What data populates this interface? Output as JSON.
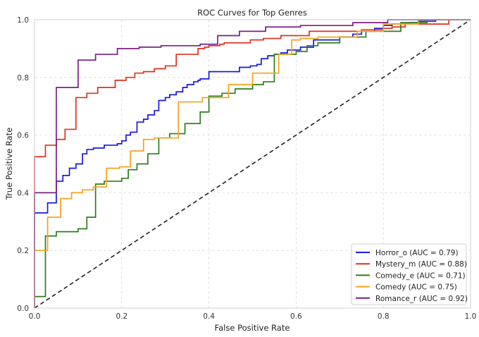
{
  "chart_data": {
    "type": "line",
    "title": "ROC Curves for Top Genres",
    "xlabel": "False Positive Rate",
    "ylabel": "True Positive Rate",
    "xlim": [
      0.0,
      1.0
    ],
    "ylim": [
      0.0,
      1.0
    ],
    "xticks": [
      "0.0",
      "0.2",
      "0.4",
      "0.6",
      "0.8",
      "1.0"
    ],
    "yticks": [
      "0.0",
      "0.2",
      "0.4",
      "0.6",
      "0.8",
      "1.0"
    ],
    "grid": true,
    "legend_position": "lower-right",
    "baseline": {
      "x": [
        0,
        1
      ],
      "y": [
        0,
        1
      ],
      "color": "#222222",
      "style": "dashed"
    },
    "series": [
      {
        "name": "Horror_o (AUC = 0.79)",
        "color": "#1818e0",
        "x": [
          0,
          0,
          0.03,
          0.03,
          0.05,
          0.05,
          0.065,
          0.065,
          0.08,
          0.08,
          0.095,
          0.095,
          0.11,
          0.11,
          0.12,
          0.12,
          0.135,
          0.135,
          0.16,
          0.16,
          0.19,
          0.19,
          0.2,
          0.2,
          0.21,
          0.21,
          0.22,
          0.22,
          0.235,
          0.235,
          0.25,
          0.25,
          0.26,
          0.26,
          0.275,
          0.275,
          0.285,
          0.285,
          0.3,
          0.3,
          0.31,
          0.31,
          0.325,
          0.325,
          0.34,
          0.34,
          0.35,
          0.35,
          0.365,
          0.365,
          0.375,
          0.375,
          0.38,
          0.38,
          0.4,
          0.4,
          0.47,
          0.47,
          0.495,
          0.495,
          0.51,
          0.51,
          0.52,
          0.52,
          0.535,
          0.535,
          0.55,
          0.55,
          0.565,
          0.565,
          0.58,
          0.58,
          0.61,
          0.61,
          0.64,
          0.64,
          0.7,
          0.7,
          0.73,
          0.73,
          0.75,
          0.75,
          0.78,
          0.78,
          0.8,
          0.8,
          0.82,
          0.82,
          0.86,
          0.86,
          0.88,
          0.88,
          0.92,
          0.92,
          1.0
        ],
        "y": [
          0,
          0.33,
          0.33,
          0.365,
          0.365,
          0.44,
          0.44,
          0.46,
          0.46,
          0.485,
          0.485,
          0.5,
          0.5,
          0.535,
          0.535,
          0.55,
          0.55,
          0.555,
          0.555,
          0.565,
          0.565,
          0.57,
          0.57,
          0.58,
          0.58,
          0.6,
          0.6,
          0.61,
          0.61,
          0.645,
          0.645,
          0.655,
          0.655,
          0.67,
          0.67,
          0.685,
          0.685,
          0.72,
          0.72,
          0.73,
          0.73,
          0.74,
          0.74,
          0.75,
          0.75,
          0.765,
          0.765,
          0.775,
          0.775,
          0.785,
          0.785,
          0.79,
          0.79,
          0.795,
          0.795,
          0.82,
          0.82,
          0.835,
          0.835,
          0.84,
          0.84,
          0.845,
          0.845,
          0.865,
          0.865,
          0.875,
          0.875,
          0.88,
          0.88,
          0.885,
          0.885,
          0.895,
          0.895,
          0.905,
          0.905,
          0.93,
          0.93,
          0.94,
          0.94,
          0.95,
          0.95,
          0.96,
          0.96,
          0.97,
          0.97,
          0.98,
          0.98,
          0.985,
          0.985,
          0.99,
          0.99,
          0.995,
          0.995,
          1.0,
          1.0
        ]
      },
      {
        "name": "Mystery_m (AUC = 0.88)",
        "color": "#e0301e",
        "x": [
          0,
          0,
          0.025,
          0.025,
          0.05,
          0.05,
          0.07,
          0.07,
          0.095,
          0.095,
          0.12,
          0.12,
          0.145,
          0.145,
          0.185,
          0.185,
          0.21,
          0.21,
          0.23,
          0.23,
          0.25,
          0.25,
          0.275,
          0.275,
          0.3,
          0.3,
          0.325,
          0.325,
          0.375,
          0.375,
          0.39,
          0.39,
          0.4,
          0.4,
          0.425,
          0.425,
          0.435,
          0.435,
          0.495,
          0.495,
          0.525,
          0.525,
          0.565,
          0.565,
          0.63,
          0.63,
          0.75,
          0.75,
          0.8,
          0.8,
          0.82,
          0.82,
          0.85,
          0.85,
          0.95,
          0.95,
          1.0
        ],
        "y": [
          0,
          0.525,
          0.525,
          0.565,
          0.565,
          0.585,
          0.585,
          0.62,
          0.62,
          0.73,
          0.73,
          0.745,
          0.745,
          0.765,
          0.765,
          0.79,
          0.79,
          0.8,
          0.8,
          0.815,
          0.815,
          0.82,
          0.82,
          0.83,
          0.83,
          0.84,
          0.84,
          0.88,
          0.88,
          0.9,
          0.9,
          0.905,
          0.905,
          0.91,
          0.91,
          0.915,
          0.915,
          0.92,
          0.92,
          0.93,
          0.93,
          0.935,
          0.935,
          0.945,
          0.945,
          0.96,
          0.96,
          0.965,
          0.965,
          0.97,
          0.97,
          0.975,
          0.975,
          0.985,
          0.985,
          1.0,
          1.0
        ]
      },
      {
        "name": "Comedy_e (AUC = 0.71)",
        "color": "#2e7d1a",
        "x": [
          0,
          0,
          0.025,
          0.025,
          0.05,
          0.05,
          0.1,
          0.1,
          0.12,
          0.12,
          0.14,
          0.14,
          0.16,
          0.16,
          0.2,
          0.2,
          0.215,
          0.215,
          0.235,
          0.235,
          0.26,
          0.26,
          0.285,
          0.285,
          0.31,
          0.31,
          0.345,
          0.345,
          0.38,
          0.38,
          0.4,
          0.4,
          0.43,
          0.43,
          0.46,
          0.46,
          0.5,
          0.5,
          0.525,
          0.525,
          0.55,
          0.55,
          0.6,
          0.6,
          0.625,
          0.625,
          0.65,
          0.65,
          0.7,
          0.7,
          0.76,
          0.76,
          0.84,
          0.84,
          0.9,
          0.9,
          1.0
        ],
        "y": [
          0,
          0.04,
          0.04,
          0.25,
          0.25,
          0.265,
          0.265,
          0.275,
          0.275,
          0.315,
          0.315,
          0.43,
          0.43,
          0.44,
          0.44,
          0.45,
          0.45,
          0.48,
          0.48,
          0.5,
          0.5,
          0.535,
          0.535,
          0.59,
          0.59,
          0.605,
          0.605,
          0.64,
          0.64,
          0.68,
          0.68,
          0.735,
          0.735,
          0.745,
          0.745,
          0.76,
          0.76,
          0.775,
          0.775,
          0.785,
          0.785,
          0.88,
          0.88,
          0.89,
          0.89,
          0.91,
          0.91,
          0.92,
          0.92,
          0.94,
          0.94,
          0.96,
          0.96,
          0.99,
          0.99,
          1.0,
          1.0
        ]
      },
      {
        "name": "Comedy (AUC = 0.75)",
        "color": "#f5a21e",
        "x": [
          0,
          0,
          0.03,
          0.03,
          0.06,
          0.06,
          0.085,
          0.085,
          0.11,
          0.11,
          0.135,
          0.135,
          0.165,
          0.165,
          0.195,
          0.195,
          0.22,
          0.22,
          0.25,
          0.25,
          0.275,
          0.275,
          0.33,
          0.33,
          0.385,
          0.385,
          0.445,
          0.445,
          0.5,
          0.5,
          0.56,
          0.56,
          0.59,
          0.59,
          0.61,
          0.61,
          0.65,
          0.65,
          0.74,
          0.74,
          0.8,
          0.8,
          0.88,
          0.88,
          1.0
        ],
        "y": [
          0,
          0.2,
          0.2,
          0.315,
          0.315,
          0.38,
          0.38,
          0.4,
          0.4,
          0.41,
          0.41,
          0.42,
          0.42,
          0.485,
          0.485,
          0.49,
          0.49,
          0.545,
          0.545,
          0.585,
          0.585,
          0.59,
          0.59,
          0.715,
          0.715,
          0.73,
          0.73,
          0.775,
          0.775,
          0.815,
          0.815,
          0.88,
          0.88,
          0.93,
          0.93,
          0.935,
          0.935,
          0.94,
          0.94,
          0.96,
          0.96,
          0.985,
          0.985,
          1.0,
          1.0
        ]
      },
      {
        "name": "Romance_r (AUC = 0.92)",
        "color": "#7b1f87",
        "x": [
          0,
          0,
          0.05,
          0.05,
          0.1,
          0.1,
          0.14,
          0.14,
          0.19,
          0.19,
          0.24,
          0.24,
          0.29,
          0.29,
          0.38,
          0.38,
          0.42,
          0.42,
          0.47,
          0.47,
          0.53,
          0.53,
          0.61,
          0.61,
          0.73,
          0.73,
          0.81,
          0.81,
          1.0
        ],
        "y": [
          0,
          0.4,
          0.4,
          0.765,
          0.765,
          0.86,
          0.86,
          0.88,
          0.88,
          0.9,
          0.9,
          0.905,
          0.905,
          0.91,
          0.91,
          0.915,
          0.915,
          0.945,
          0.945,
          0.96,
          0.96,
          0.975,
          0.975,
          0.98,
          0.98,
          0.99,
          0.99,
          1.0,
          1.0
        ]
      }
    ]
  }
}
